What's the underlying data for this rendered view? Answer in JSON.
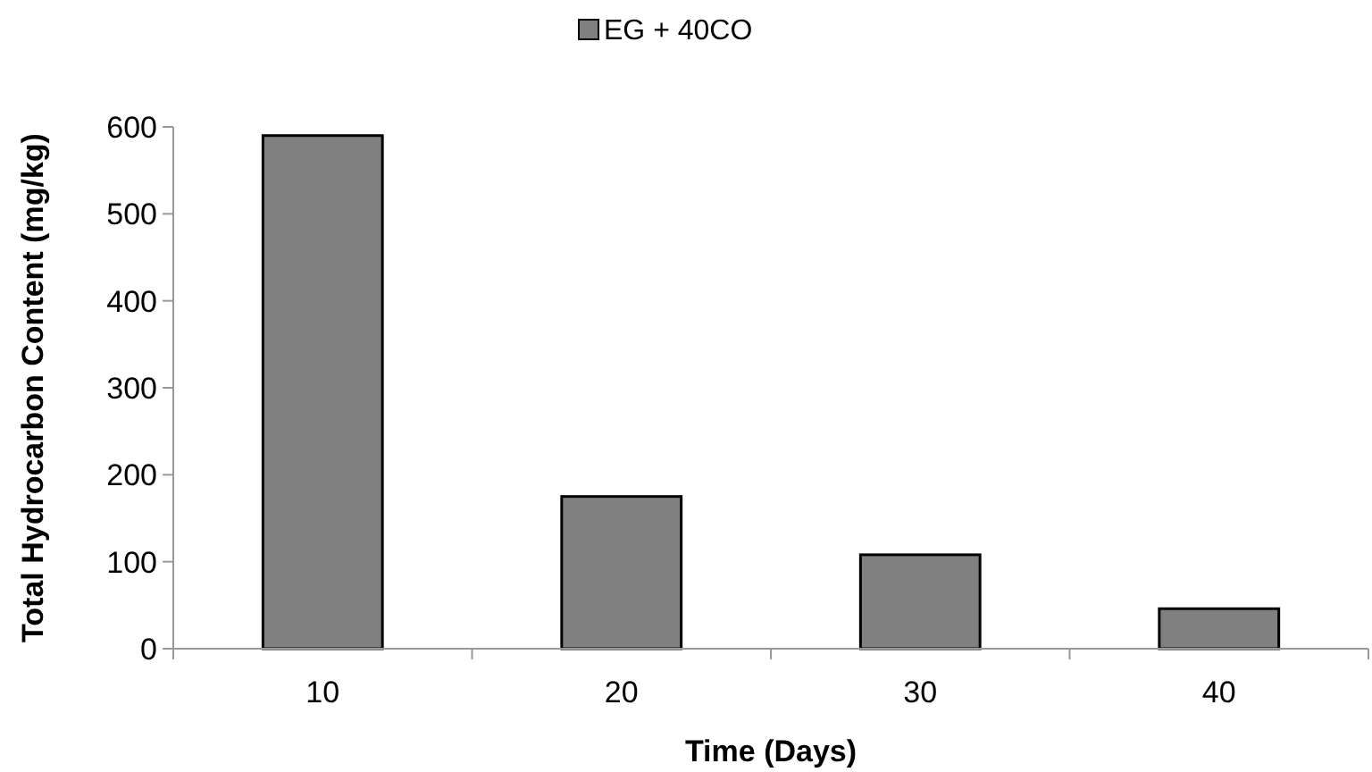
{
  "chart_data": {
    "type": "bar",
    "xlabel": "Time (Days)",
    "ylabel": "Total Hydrocarbon Content (mg/kg)",
    "categories": [
      "10",
      "20",
      "30",
      "40"
    ],
    "series": [
      {
        "name": "EG + 40CO",
        "color": "#808080",
        "values": [
          590,
          175,
          108,
          46
        ]
      }
    ],
    "ylim": [
      0,
      600
    ],
    "yticks": [
      0,
      100,
      200,
      300,
      400,
      500,
      600
    ],
    "grid": false,
    "legend": "top"
  }
}
